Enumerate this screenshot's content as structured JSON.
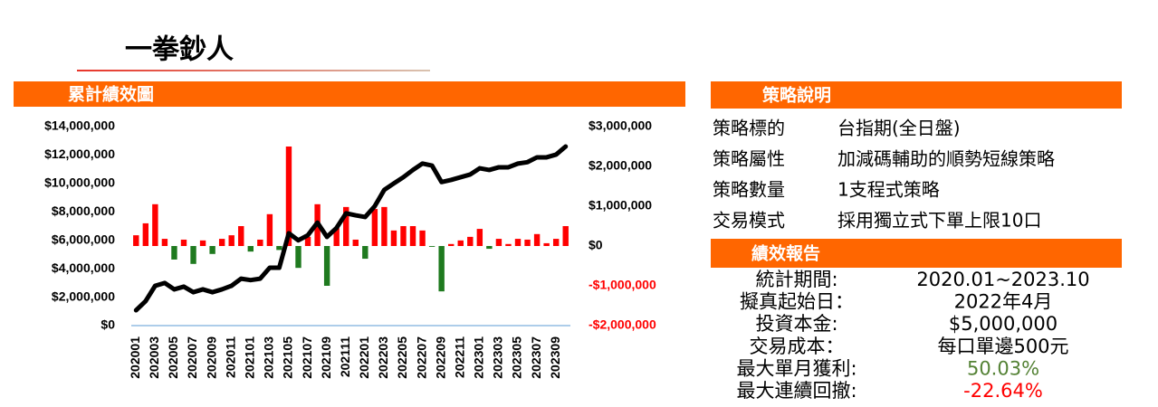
{
  "title": "一拳鈔人",
  "chart_data": {
    "type": "combo",
    "title": "累計績效圖",
    "categories": [
      "202001",
      null,
      "202003",
      null,
      "202005",
      null,
      "202007",
      null,
      "202009",
      null,
      "202011",
      null,
      "202101",
      null,
      "202103",
      null,
      "202105",
      null,
      "202107",
      null,
      "202109",
      null,
      "202111",
      null,
      "202201",
      null,
      "202203",
      null,
      "202205",
      null,
      "202207",
      null,
      "202209",
      null,
      "202211",
      null,
      "202301",
      null,
      "202303",
      null,
      "202305",
      null,
      "202307",
      null,
      "202309",
      null
    ],
    "series": [
      {
        "type": "bar",
        "axis": "y2",
        "color": "#ff0000",
        "negative_color": "#1f7a1f",
        "values": [
          270000,
          570000,
          1050000,
          180000,
          -340000,
          160000,
          -450000,
          140000,
          -200000,
          180000,
          270000,
          500000,
          -140000,
          160000,
          800000,
          -100000,
          2500000,
          -550000,
          230000,
          1050000,
          -1000000,
          450000,
          980000,
          160000,
          -320000,
          930000,
          980000,
          390000,
          500000,
          500000,
          390000,
          -20000,
          -1140000,
          50000,
          140000,
          230000,
          430000,
          -70000,
          180000,
          50000,
          180000,
          160000,
          300000,
          70000,
          180000,
          500000
        ]
      },
      {
        "type": "line",
        "axis": "y",
        "color": "#000000",
        "values": [
          1080000,
          1720000,
          2800000,
          3000000,
          2550000,
          2740000,
          2350000,
          2550000,
          2350000,
          2550000,
          2800000,
          3300000,
          3200000,
          3300000,
          4070000,
          4070000,
          6500000,
          6000000,
          6360000,
          7250000,
          6240000,
          6870000,
          7900000,
          7760000,
          7640000,
          8400000,
          9550000,
          10000000,
          10440000,
          10950000,
          11400000,
          11260000,
          10100000,
          10250000,
          10440000,
          10630000,
          11070000,
          10950000,
          11140000,
          11140000,
          11400000,
          11500000,
          11840000,
          11840000,
          12030000,
          12600000
        ]
      }
    ],
    "ylim": [
      0,
      14000000
    ],
    "yticks": [
      {
        "value": 0,
        "label": "$0"
      },
      {
        "value": 2000000,
        "label": "$2,000,000"
      },
      {
        "value": 4000000,
        "label": "$4,000,000"
      },
      {
        "value": 6000000,
        "label": "$6,000,000"
      },
      {
        "value": 8000000,
        "label": "$8,000,000"
      },
      {
        "value": 10000000,
        "label": "$10,000,000"
      },
      {
        "value": 12000000,
        "label": "$12,000,000"
      },
      {
        "value": 14000000,
        "label": "$14,000,000"
      }
    ],
    "y2lim": [
      -2000000,
      3000000
    ],
    "y2ticks": [
      {
        "value": -2000000,
        "label": "-$2,000,000"
      },
      {
        "value": -1000000,
        "label": "-$1,000,000"
      },
      {
        "value": 0,
        "label": "$0"
      },
      {
        "value": 1000000,
        "label": "$1,000,000"
      },
      {
        "value": 2000000,
        "label": "$2,000,000"
      },
      {
        "value": 3000000,
        "label": "$3,000,000"
      }
    ],
    "y2_negative_tick_color": "#ff0000",
    "grid": false
  },
  "strategy": {
    "title": "策略說明",
    "rows": [
      [
        "策略標的",
        "台指期(全日盤)"
      ],
      [
        "策略屬性",
        "加減碼輔助的順勢短線策略"
      ],
      [
        "策略數量",
        "1支程式策略"
      ],
      [
        "交易模式",
        "採用獨立式下單上限10口"
      ]
    ]
  },
  "report": {
    "title": "績效報告",
    "rows": [
      {
        "label": "統計期間:",
        "value": "2020.01~2023.10"
      },
      {
        "label": "擬真起始日：",
        "value": "2022年4月"
      },
      {
        "label": "投資本金:",
        "value": "$5,000,000"
      },
      {
        "label": "交易成本：",
        "value": "每口單邊500元"
      },
      {
        "label": "最大單月獲利:",
        "value": "50.03%",
        "color": "#548235"
      },
      {
        "label": "最大連續回撤:",
        "value": "-22.64%",
        "color": "#ff0000"
      }
    ]
  }
}
